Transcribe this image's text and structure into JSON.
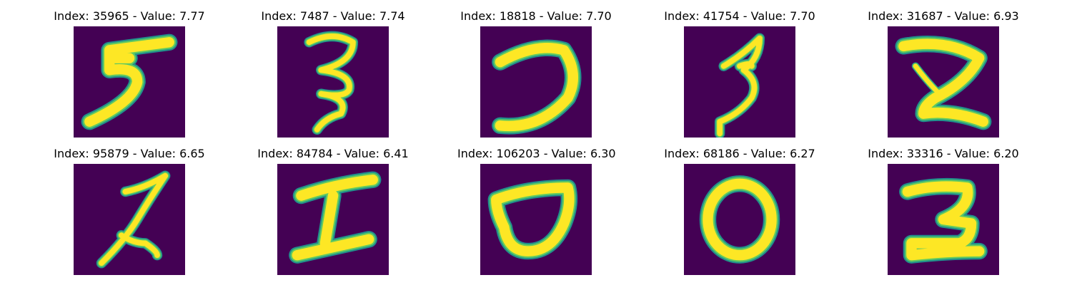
{
  "colors": {
    "background": "#440154",
    "stroke_edge": "#21918c",
    "stroke_mid": "#5ec962",
    "stroke_core": "#fde725"
  },
  "panels": [
    {
      "title": "Index: 35965 - Value: 7.77"
    },
    {
      "title": "Index: 7487 - Value: 7.74"
    },
    {
      "title": "Index: 18818 - Value: 7.70"
    },
    {
      "title": "Index: 41754 - Value: 7.70"
    },
    {
      "title": "Index: 31687 - Value: 6.93"
    },
    {
      "title": "Index: 95879 - Value: 6.65"
    },
    {
      "title": "Index: 84784 - Value: 6.41"
    },
    {
      "title": "Index: 106203 - Value: 6.30"
    },
    {
      "title": "Index: 68186 - Value: 6.27"
    },
    {
      "title": "Index: 33316 - Value: 6.20"
    }
  ]
}
